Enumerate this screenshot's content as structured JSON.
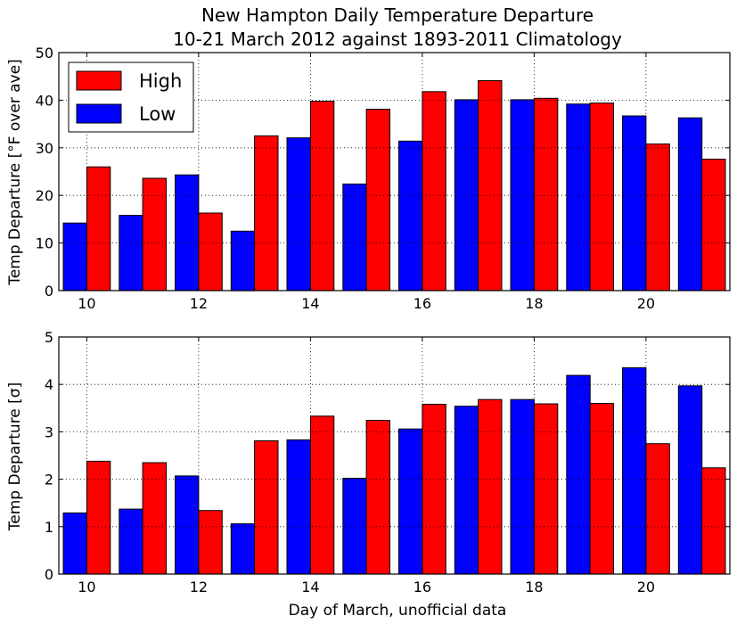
{
  "title": {
    "line1": "New Hampton Daily Temperature Departure",
    "line2": "10-21 March 2012 against 1893-2011 Climatology"
  },
  "colors": {
    "low": "#0000ff",
    "high": "#ff0000"
  },
  "legend": {
    "placement": "upper-left",
    "high_label": "High",
    "low_label": "Low"
  },
  "xlabel": "Day of March, unofficial data",
  "chart_data": [
    {
      "type": "bar",
      "ylabel": "Temp Departure [°F over ave]",
      "ylim": [
        0,
        50
      ],
      "yticks": [
        0,
        10,
        20,
        30,
        40,
        50
      ],
      "xticks": [
        10,
        12,
        14,
        16,
        18,
        20
      ],
      "grid": true,
      "categories": [
        10,
        11,
        12,
        13,
        14,
        15,
        16,
        17,
        18,
        19,
        20,
        21
      ],
      "series": [
        {
          "name": "Low",
          "values": [
            14.2,
            15.8,
            24.3,
            12.5,
            32.1,
            22.4,
            31.4,
            40.1,
            40.1,
            39.2,
            36.7,
            36.3
          ]
        },
        {
          "name": "High",
          "values": [
            26.0,
            23.6,
            16.3,
            32.5,
            39.8,
            38.1,
            41.8,
            44.1,
            40.4,
            39.4,
            30.8,
            27.6
          ]
        }
      ]
    },
    {
      "type": "bar",
      "ylabel": "Temp Departure [σ]",
      "ylim": [
        0,
        5
      ],
      "yticks": [
        0,
        1,
        2,
        3,
        4,
        5
      ],
      "xticks": [
        10,
        12,
        14,
        16,
        18,
        20
      ],
      "grid": true,
      "categories": [
        10,
        11,
        12,
        13,
        14,
        15,
        16,
        17,
        18,
        19,
        20,
        21
      ],
      "series": [
        {
          "name": "Low",
          "values": [
            1.29,
            1.37,
            2.07,
            1.06,
            2.83,
            2.02,
            3.06,
            3.54,
            3.68,
            4.19,
            4.35,
            3.97
          ]
        },
        {
          "name": "High",
          "values": [
            2.38,
            2.35,
            1.34,
            2.81,
            3.33,
            3.24,
            3.58,
            3.68,
            3.59,
            3.6,
            2.75,
            2.24
          ]
        }
      ]
    }
  ]
}
